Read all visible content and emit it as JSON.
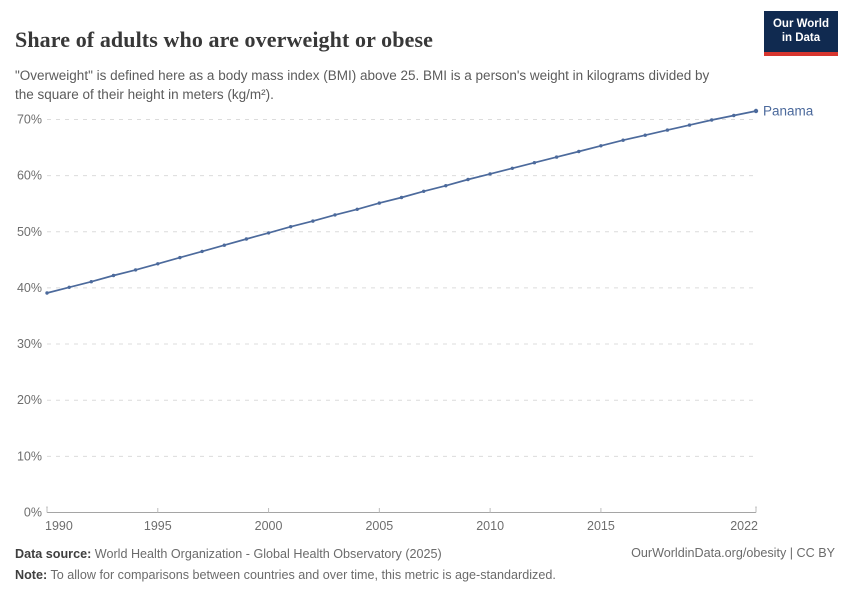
{
  "header": {
    "title": "Share of adults who are overweight or obese",
    "subtitle": "\"Overweight\" is defined here as a body mass index (BMI) above 25. BMI is a person's weight in kilograms divided by the square of their height in meters (kg/m²).",
    "logo": {
      "line1": "Our World",
      "line2": "in Data"
    }
  },
  "chart_data": {
    "type": "line",
    "title": "Share of adults who are overweight or obese",
    "entity_label": "Panama",
    "unit": "%",
    "x": [
      1990,
      1991,
      1992,
      1993,
      1994,
      1995,
      1996,
      1997,
      1998,
      1999,
      2000,
      2001,
      2002,
      2003,
      2004,
      2005,
      2006,
      2007,
      2008,
      2009,
      2010,
      2011,
      2012,
      2013,
      2014,
      2015,
      2016,
      2017,
      2018,
      2019,
      2020,
      2021,
      2022
    ],
    "series": [
      {
        "name": "Panama",
        "values": [
          39.1,
          40.1,
          41.1,
          42.2,
          43.2,
          44.3,
          45.4,
          46.5,
          47.6,
          48.7,
          49.8,
          50.9,
          51.9,
          53.0,
          54.0,
          55.1,
          56.1,
          57.2,
          58.2,
          59.3,
          60.3,
          61.3,
          62.3,
          63.3,
          64.3,
          65.3,
          66.3,
          67.2,
          68.1,
          69.0,
          69.9,
          70.7,
          71.5
        ]
      }
    ],
    "xlim": [
      1990,
      2022
    ],
    "ylim": [
      0,
      72
    ],
    "yticks": [
      0,
      10,
      20,
      30,
      40,
      50,
      60,
      70
    ],
    "ytick_suffix": "%",
    "xticks": [
      1990,
      1995,
      2000,
      2005,
      2010,
      2015,
      2022
    ],
    "grid": "horizontal-dashed",
    "legend_position": "end-of-line",
    "colors": {
      "line": "#4C6A9C",
      "entity_label": "#4C6A9C",
      "gridline": "#dcdcdc",
      "axis": "#a5a5a5",
      "tick_text": "#6e6e6e"
    }
  },
  "footer": {
    "data_source_label": "Data source:",
    "data_source_text": " World Health Organization - Global Health Observatory (2025)",
    "note_label": "Note:",
    "note_text": " To allow for comparisons between countries and over time, this metric is age-standardized.",
    "attribution": "OurWorldinData.org/obesity | CC BY"
  }
}
